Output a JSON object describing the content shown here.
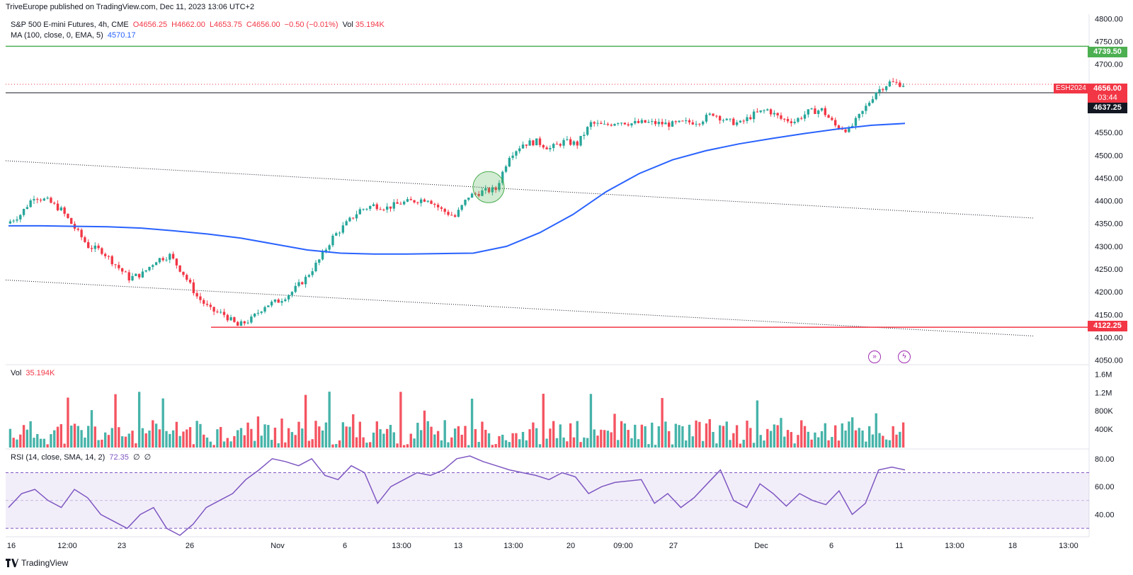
{
  "header": {
    "published": "TriveEurope published on TradingView.com, Dec 11, 2023 13:06 UTC+2"
  },
  "legend": {
    "symbol": "S&P 500 E-mini Futures, 4h, CME",
    "open": "O4656.25",
    "high": "H4662.00",
    "low": "L4653.75",
    "close": "C4656.00",
    "change": "−0.50 (−0.01%)",
    "vol_label": "Vol",
    "vol_value": "35.194K",
    "ma_label": "MA (100, close, 0, EMA, 5)",
    "ma_value": "4570.17"
  },
  "volume_pane": {
    "label": "Vol",
    "value": "35.194K",
    "ticks": [
      "1.6M",
      "1.2M",
      "800K",
      "400K"
    ]
  },
  "rsi_pane": {
    "label": "RSI (14, close, SMA, 14, 2)",
    "value": "72.35",
    "extra1": "∅",
    "extra2": "∅",
    "ticks": [
      "80.00",
      "60.00",
      "40.00"
    ]
  },
  "price_tags": {
    "resistance": "4739.50",
    "symbol_tag": "ESH2024",
    "last": "4656.00",
    "countdown": "03:44",
    "support_black": "4637.25",
    "support_red": "4122.25"
  },
  "footer": {
    "logo_text": "TradingView"
  },
  "colors": {
    "up": "#26a69a",
    "down": "#f23645",
    "ma": "#2962ff",
    "rsi": "#7e57c2",
    "green_line": "#4caf50",
    "red_line": "#f23645",
    "black_line": "#131722"
  },
  "chart_data": {
    "type": "line",
    "x_labels": [
      "16",
      "12:00",
      "23",
      "26",
      "Nov",
      "6",
      "13:00",
      "13",
      "13:00",
      "20",
      "09:00",
      "27",
      "Dec",
      "6",
      "11",
      "13:00",
      "18",
      "13:00"
    ],
    "y_ticks": [
      "4800.00",
      "4750.00",
      "4700.00",
      "4650.00",
      "4600.00",
      "4550.00",
      "4500.00",
      "4450.00",
      "4400.00",
      "4350.00",
      "4300.00",
      "4250.00",
      "4200.00",
      "4150.00",
      "4100.00",
      "4050.00"
    ],
    "ylim": [
      4040,
      4810
    ],
    "horizontal_levels": [
      4739.5,
      4637.25,
      4122.25
    ],
    "price_path": [
      4350,
      4370,
      4410,
      4400,
      4380,
      4340,
      4300,
      4290,
      4260,
      4230,
      4240,
      4270,
      4280,
      4240,
      4190,
      4160,
      4150,
      4125,
      4140,
      4170,
      4180,
      4200,
      4230,
      4270,
      4320,
      4350,
      4380,
      4390,
      4385,
      4395,
      4400,
      4405,
      4380,
      4365,
      4410,
      4420,
      4425,
      4500,
      4525,
      4530,
      4515,
      4530,
      4525,
      4570,
      4565,
      4575,
      4570,
      4572,
      4570,
      4568,
      4572,
      4575,
      4592,
      4575,
      4570,
      4590,
      4600,
      4580,
      4575,
      4595,
      4600,
      4565,
      4555,
      4595,
      4640,
      4660,
      4656
    ],
    "ema100_path": [
      4345,
      4345,
      4344,
      4343,
      4340,
      4334,
      4327,
      4318,
      4305,
      4292,
      4285,
      4283,
      4283,
      4284,
      4285,
      4300,
      4330,
      4370,
      4420,
      4460,
      4490,
      4510,
      4525,
      4537,
      4548,
      4558,
      4566,
      4570
    ],
    "rsi_path": [
      45,
      55,
      58,
      50,
      45,
      58,
      52,
      40,
      35,
      30,
      40,
      45,
      30,
      25,
      33,
      45,
      50,
      55,
      65,
      72,
      80,
      78,
      75,
      80,
      68,
      65,
      75,
      70,
      48,
      60,
      65,
      70,
      68,
      72,
      80,
      82,
      78,
      75,
      72,
      70,
      68,
      65,
      70,
      67,
      55,
      60,
      63,
      64,
      65,
      48,
      55,
      45,
      52,
      62,
      72,
      50,
      45,
      62,
      55,
      46,
      55,
      50,
      47,
      57,
      40,
      48,
      72,
      74,
      72
    ]
  }
}
